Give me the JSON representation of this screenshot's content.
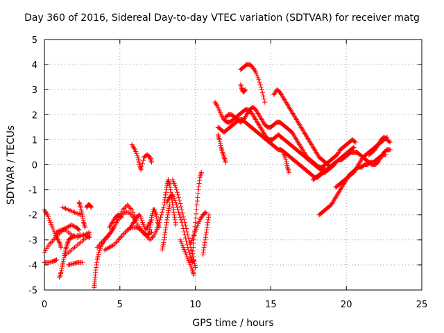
{
  "chart_data": {
    "type": "scatter",
    "title": "Day 360 of 2016, Sidereal Day-to-day VTEC variation (SDTVAR) for receiver matg",
    "xlabel": "GPS time / hours",
    "ylabel": "SDTVAR / TECUs",
    "xlim": [
      0,
      25
    ],
    "ylim": [
      -5,
      5
    ],
    "xticks": [
      0,
      5,
      10,
      15,
      20,
      25
    ],
    "yticks": [
      -5,
      -4,
      -3,
      -2,
      -1,
      0,
      1,
      2,
      3,
      4,
      5
    ],
    "grid": true,
    "marker": "+",
    "color": "#ff0000",
    "series": [
      {
        "name": "s1",
        "x": [
          0,
          0.2,
          0.4,
          0.6,
          0.8,
          1.0,
          1.1
        ],
        "y": [
          -1.8,
          -2.0,
          -2.3,
          -2.6,
          -2.9,
          -3.1,
          -3.3
        ]
      },
      {
        "name": "s2",
        "x": [
          0,
          0.3,
          0.6,
          0.9,
          1.2,
          1.5,
          1.8,
          2.1,
          2.3
        ],
        "y": [
          -3.5,
          -3.2,
          -3.0,
          -2.8,
          -2.6,
          -2.5,
          -2.4,
          -2.5,
          -2.6
        ]
      },
      {
        "name": "s3",
        "x": [
          0,
          0.3,
          0.6,
          0.8
        ],
        "y": [
          -3.9,
          -3.9,
          -3.85,
          -3.8
        ]
      },
      {
        "name": "s4",
        "x": [
          0.8,
          1.1,
          1.4,
          1.8,
          2.2,
          2.6,
          3.0
        ],
        "y": [
          -2.7,
          -2.6,
          -2.6,
          -2.8,
          -2.9,
          -2.8,
          -2.7
        ]
      },
      {
        "name": "s5",
        "x": [
          1.4,
          1.8,
          2.2,
          2.6,
          3.0
        ],
        "y": [
          -3.6,
          -3.4,
          -3.2,
          -3.0,
          -2.8
        ]
      },
      {
        "name": "s6",
        "x": [
          1.2,
          1.6,
          2.0,
          2.4
        ],
        "y": [
          -1.7,
          -1.8,
          -1.9,
          -2.0
        ]
      },
      {
        "name": "s7",
        "x": [
          1.0,
          1.1,
          1.2,
          1.3,
          1.4,
          1.5,
          1.6,
          1.8,
          2.0,
          2.4,
          2.8,
          3.0
        ],
        "y": [
          -4.5,
          -4.3,
          -4.0,
          -3.7,
          -3.4,
          -3.2,
          -3.0,
          -2.9,
          -2.85,
          -2.8,
          -2.85,
          -2.9
        ]
      },
      {
        "name": "s8",
        "x": [
          1.6,
          1.9,
          2.2,
          2.5
        ],
        "y": [
          -4.0,
          -3.95,
          -3.9,
          -3.9
        ]
      },
      {
        "name": "s9",
        "x": [
          2.3,
          2.4,
          2.5,
          2.6,
          2.7
        ],
        "y": [
          -1.5,
          -1.7,
          -2.0,
          -2.3,
          -2.5
        ]
      },
      {
        "name": "s10",
        "x": [
          2.8,
          2.9,
          3.0,
          3.1
        ],
        "y": [
          -1.7,
          -1.6,
          -1.6,
          -1.7
        ]
      },
      {
        "name": "s11",
        "x": [
          3.3,
          3.35,
          3.4,
          3.5,
          3.6,
          3.8,
          4.0,
          4.3,
          4.6,
          4.9,
          5.2,
          5.5,
          5.8,
          6.1
        ],
        "y": [
          -4.9,
          -4.6,
          -4.2,
          -3.8,
          -3.5,
          -3.2,
          -3.0,
          -2.8,
          -2.5,
          -2.1,
          -1.8,
          -1.6,
          -1.8,
          -2.2
        ]
      },
      {
        "name": "s12",
        "x": [
          3.5,
          3.8,
          4.1,
          4.4,
          4.7,
          5.0,
          5.3,
          5.6,
          5.9,
          6.2,
          6.5,
          6.8,
          7.1
        ],
        "y": [
          -3.3,
          -3.1,
          -2.9,
          -2.7,
          -2.4,
          -2.1,
          -1.9,
          -1.9,
          -2.1,
          -2.4,
          -2.7,
          -2.8,
          -2.7
        ]
      },
      {
        "name": "s13",
        "x": [
          4.0,
          4.3,
          4.6,
          4.9,
          5.2,
          5.5,
          5.8,
          6.1,
          6.4,
          6.7,
          7.0,
          7.3,
          7.5
        ],
        "y": [
          -3.4,
          -3.3,
          -3.2,
          -3.0,
          -2.8,
          -2.6,
          -2.5,
          -2.5,
          -2.6,
          -2.8,
          -3.0,
          -2.8,
          -2.5
        ]
      },
      {
        "name": "s14",
        "x": [
          4.3,
          4.5,
          4.7,
          4.9,
          5.1
        ],
        "y": [
          -2.5,
          -2.3,
          -2.1,
          -2.0,
          -2.1
        ]
      },
      {
        "name": "s15",
        "x": [
          5.7,
          5.9,
          6.1,
          6.3,
          6.5,
          6.7,
          6.9,
          7.1
        ],
        "y": [
          -2.5,
          -2.3,
          -2.1,
          -2.0,
          -2.3,
          -2.6,
          -2.4,
          -2.2
        ]
      },
      {
        "name": "s16",
        "x": [
          5.8,
          6.0,
          6.2,
          6.3,
          6.4,
          6.6,
          6.8,
          7.0,
          7.1
        ],
        "y": [
          0.8,
          0.6,
          0.3,
          0.0,
          -0.2,
          0.3,
          0.4,
          0.3,
          0.1
        ]
      },
      {
        "name": "s17",
        "x": [
          6.9,
          7.0,
          7.1,
          7.2,
          7.3,
          7.4,
          7.5,
          7.6
        ],
        "y": [
          -2.8,
          -2.5,
          -2.1,
          -1.8,
          -1.8,
          -2.0,
          -2.3,
          -2.5
        ]
      },
      {
        "name": "s18",
        "x": [
          7.5,
          7.7,
          7.9,
          8.0,
          8.1,
          8.2,
          8.3,
          8.4,
          8.5,
          8.6,
          8.7
        ],
        "y": [
          -2.5,
          -2.1,
          -1.7,
          -1.3,
          -0.9,
          -0.6,
          -0.8,
          -1.2,
          -1.6,
          -2.0,
          -2.4
        ]
      },
      {
        "name": "s19",
        "x": [
          7.8,
          7.9,
          8.0,
          8.1,
          8.2,
          8.3
        ],
        "y": [
          -3.4,
          -3.1,
          -2.7,
          -2.3,
          -1.9,
          -1.6
        ]
      },
      {
        "name": "s20",
        "x": [
          8.1,
          8.3,
          8.5,
          8.7,
          8.9,
          9.1,
          9.3,
          9.5,
          9.7,
          9.8,
          9.9
        ],
        "y": [
          -1.5,
          -1.3,
          -1.2,
          -1.5,
          -1.9,
          -2.3,
          -2.8,
          -3.3,
          -3.7,
          -3.9,
          -3.8
        ]
      },
      {
        "name": "s21",
        "x": [
          8.5,
          8.7,
          8.9,
          9.1,
          9.3,
          9.5,
          9.7,
          9.9,
          10.0
        ],
        "y": [
          -0.6,
          -0.9,
          -1.3,
          -1.8,
          -2.3,
          -2.8,
          -3.3,
          -3.8,
          -4.1
        ]
      },
      {
        "name": "s22",
        "x": [
          9.0,
          9.2,
          9.4,
          9.6,
          9.8,
          9.9
        ],
        "y": [
          -3.0,
          -3.3,
          -3.6,
          -3.9,
          -4.2,
          -4.4
        ]
      },
      {
        "name": "s23",
        "x": [
          9.8,
          9.9,
          10.0,
          10.1,
          10.2,
          10.3,
          10.4
        ],
        "y": [
          -3.6,
          -3.0,
          -2.3,
          -1.6,
          -1.0,
          -0.5,
          -0.3
        ]
      },
      {
        "name": "s24",
        "x": [
          9.7,
          9.9,
          10.1,
          10.3,
          10.5,
          10.7
        ],
        "y": [
          -3.1,
          -2.8,
          -2.5,
          -2.2,
          -2.0,
          -1.9
        ]
      },
      {
        "name": "s25",
        "x": [
          10.5,
          10.6,
          10.7,
          10.8,
          10.9
        ],
        "y": [
          -3.6,
          -3.2,
          -2.8,
          -2.4,
          -2.0
        ]
      },
      {
        "name": "s26",
        "x": [
          11.3,
          11.5,
          11.7,
          11.9,
          12.1,
          12.3,
          12.5,
          12.7,
          12.9,
          13.1,
          13.3,
          13.5,
          13.7,
          13.9,
          14.1,
          14.3,
          14.5,
          14.7,
          14.9,
          15.1,
          15.3,
          15.5,
          15.7,
          15.9,
          16.1,
          16.3,
          16.5,
          16.7,
          16.9,
          17.1,
          17.3,
          17.5,
          17.7,
          17.9,
          18.1,
          18.3,
          18.5,
          18.7,
          18.9,
          19.1,
          19.3,
          19.5,
          19.7,
          19.9,
          20.1,
          20.3,
          20.5,
          20.7,
          20.9,
          21.1,
          21.3,
          21.5,
          21.7,
          21.9,
          22.1,
          22.3,
          22.5,
          22.7,
          22.9
        ],
        "y": [
          2.5,
          2.3,
          2.0,
          1.8,
          1.7,
          1.7,
          1.8,
          1.9,
          2.0,
          2.1,
          2.2,
          2.2,
          2.1,
          1.9,
          1.7,
          1.5,
          1.3,
          1.1,
          1.0,
          1.0,
          1.1,
          1.2,
          1.1,
          1.0,
          0.9,
          0.8,
          0.7,
          0.6,
          0.5,
          0.4,
          0.3,
          0.2,
          0.1,
          0.0,
          -0.1,
          -0.2,
          -0.2,
          -0.2,
          -0.1,
          0.0,
          0.1,
          0.2,
          0.2,
          0.3,
          0.4,
          0.5,
          0.5,
          0.5,
          0.4,
          0.3,
          0.2,
          0.1,
          0.0,
          0.0,
          0.1,
          0.3,
          0.5,
          0.6,
          0.6
        ]
      },
      {
        "name": "s27",
        "x": [
          11.5,
          11.7,
          11.9,
          12.1,
          12.3,
          12.5,
          12.7,
          12.9,
          13.1,
          13.3,
          13.5,
          13.7,
          13.9,
          14.1,
          14.3,
          14.5,
          14.7,
          14.9,
          15.1,
          15.3,
          15.5,
          15.7,
          15.9,
          16.1,
          16.3,
          16.5,
          16.7,
          16.9,
          17.1,
          17.3,
          17.5,
          17.7,
          17.9,
          18.1,
          18.3,
          18.5,
          18.7,
          18.9,
          19.1,
          19.3,
          19.5,
          19.7,
          19.9,
          20.1,
          20.3,
          20.5
        ],
        "y": [
          1.5,
          1.4,
          1.3,
          1.4,
          1.5,
          1.6,
          1.7,
          1.8,
          1.8,
          1.7,
          1.6,
          1.5,
          1.4,
          1.3,
          1.2,
          1.1,
          1.0,
          0.9,
          0.8,
          0.7,
          0.6,
          0.6,
          0.5,
          0.4,
          0.3,
          0.2,
          0.1,
          0.0,
          -0.1,
          -0.2,
          -0.3,
          -0.4,
          -0.5,
          -0.5,
          -0.4,
          -0.3,
          -0.2,
          -0.1,
          0.0,
          0.1,
          0.2,
          0.3,
          0.4,
          0.5,
          0.6,
          0.7
        ]
      },
      {
        "name": "s28",
        "x": [
          12.0,
          12.2,
          12.4,
          12.6,
          12.8,
          13.0,
          13.2,
          13.4,
          13.6,
          13.8,
          14.0,
          14.2,
          14.4,
          14.6,
          14.8,
          15.0,
          15.2,
          15.4,
          15.6,
          15.8,
          16.0,
          16.2,
          16.4,
          16.6,
          16.8,
          17.0,
          17.2,
          17.4,
          17.6,
          17.8,
          18.0,
          18.2,
          18.4,
          18.6,
          18.8,
          19.0,
          19.2,
          19.4,
          19.6,
          19.8,
          20.0,
          20.2,
          20.4,
          20.6
        ],
        "y": [
          1.9,
          2.0,
          2.0,
          1.9,
          1.8,
          1.7,
          1.8,
          2.0,
          2.2,
          2.3,
          2.2,
          2.0,
          1.8,
          1.6,
          1.5,
          1.5,
          1.6,
          1.7,
          1.7,
          1.6,
          1.5,
          1.4,
          1.3,
          1.1,
          0.9,
          0.7,
          0.5,
          0.3,
          0.2,
          0.1,
          0.0,
          -0.1,
          -0.1,
          0.0,
          0.1,
          0.2,
          0.3,
          0.4,
          0.6,
          0.7,
          0.8,
          0.9,
          1.0,
          0.9
        ]
      },
      {
        "name": "s29",
        "x": [
          13.0,
          13.2,
          13.4,
          13.6,
          13.8,
          14.0,
          14.2,
          14.4,
          14.6
        ],
        "y": [
          3.8,
          3.9,
          4.0,
          4.0,
          3.9,
          3.7,
          3.4,
          3.0,
          2.5
        ]
      },
      {
        "name": "s30",
        "x": [
          13.0,
          13.1,
          13.2,
          13.3
        ],
        "y": [
          3.2,
          3.0,
          2.9,
          3.0
        ]
      },
      {
        "name": "s31",
        "x": [
          15.2,
          15.4,
          15.6,
          15.8,
          16.0,
          16.2,
          16.4,
          16.6,
          16.8,
          17.0,
          17.2,
          17.4,
          17.6,
          17.8,
          18.0,
          18.2,
          18.4,
          18.6,
          18.8,
          19.0
        ],
        "y": [
          2.8,
          3.0,
          2.9,
          2.7,
          2.5,
          2.3,
          2.1,
          1.9,
          1.7,
          1.5,
          1.3,
          1.1,
          0.9,
          0.7,
          0.5,
          0.3,
          0.2,
          0.1,
          0.0,
          -0.1
        ]
      },
      {
        "name": "s32",
        "x": [
          11.5,
          11.6,
          11.7,
          11.8,
          11.9,
          12.0
        ],
        "y": [
          1.2,
          1.0,
          0.7,
          0.5,
          0.3,
          0.1
        ]
      },
      {
        "name": "s33",
        "x": [
          15.8,
          16.0,
          16.1,
          16.2
        ],
        "y": [
          0.5,
          0.2,
          -0.1,
          -0.3
        ]
      },
      {
        "name": "s34",
        "x": [
          18.2,
          18.4,
          18.6,
          18.8,
          19.0,
          19.2,
          19.4,
          19.6,
          19.8,
          20.0,
          20.2,
          20.4,
          20.6,
          20.8,
          21.0,
          21.2,
          21.4,
          21.6,
          21.8,
          22.0,
          22.2,
          22.4,
          22.6
        ],
        "y": [
          -2.0,
          -1.9,
          -1.8,
          -1.7,
          -1.6,
          -1.4,
          -1.2,
          -1.0,
          -0.8,
          -0.6,
          -0.4,
          -0.3,
          -0.2,
          -0.1,
          -0.1,
          0.0,
          0.0,
          0.1,
          0.1,
          0.2,
          0.3,
          0.4,
          0.4
        ]
      },
      {
        "name": "s35",
        "x": [
          19.3,
          19.5,
          19.7,
          19.9,
          20.1,
          20.3,
          20.5,
          20.7,
          20.9,
          21.1,
          21.3,
          21.5,
          21.7,
          21.9,
          22.1,
          22.3,
          22.5,
          22.7
        ],
        "y": [
          -0.9,
          -0.8,
          -0.7,
          -0.6,
          -0.5,
          -0.4,
          -0.3,
          -0.1,
          0.1,
          0.3,
          0.4,
          0.5,
          0.6,
          0.7,
          0.8,
          0.9,
          1.0,
          1.1
        ]
      },
      {
        "name": "s36",
        "x": [
          21.5,
          21.7,
          21.9,
          22.1,
          22.3,
          22.5,
          22.7,
          22.9
        ],
        "y": [
          0.4,
          0.5,
          0.6,
          0.8,
          1.0,
          1.1,
          1.0,
          0.9
        ]
      },
      {
        "name": "s37",
        "x": [
          17.8,
          18.0,
          18.2,
          18.4,
          18.6,
          18.8,
          19.0,
          19.2
        ],
        "y": [
          -0.6,
          -0.5,
          -0.4,
          -0.3,
          -0.3,
          -0.2,
          -0.1,
          0.0
        ]
      }
    ]
  }
}
